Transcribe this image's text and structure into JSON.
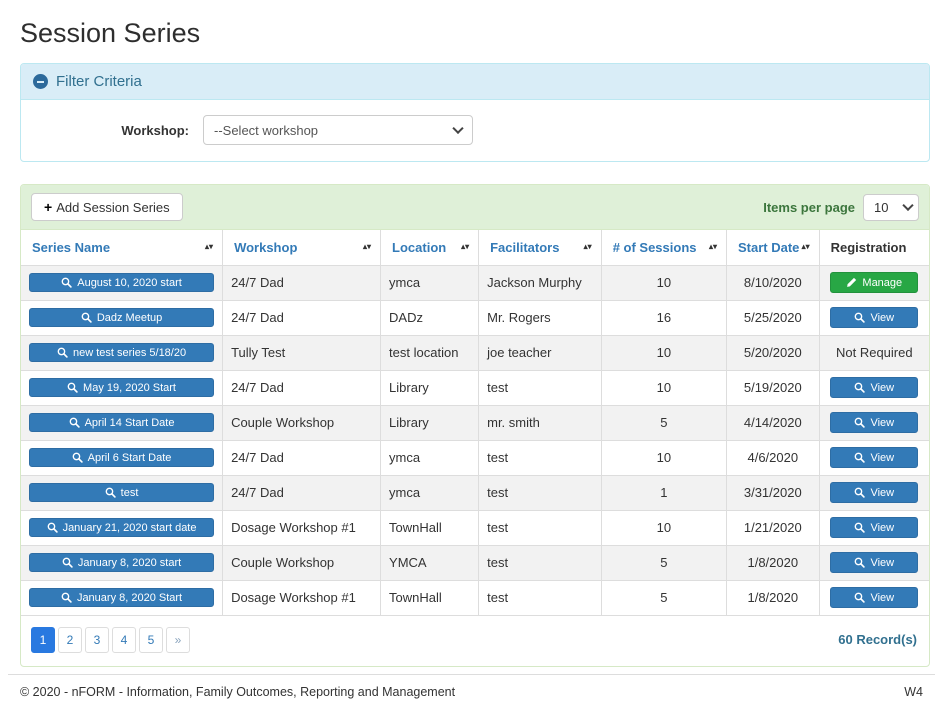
{
  "page": {
    "title": "Session Series"
  },
  "filter": {
    "header": "Filter Criteria",
    "workshop_label": "Workshop:",
    "workshop_selected": "--Select workshop"
  },
  "toolbar": {
    "add_button_plus": "+",
    "add_button": "Add Session Series",
    "items_per_page_label": "Items per page",
    "items_per_page_value": "10"
  },
  "table": {
    "columns": [
      {
        "label": "Series Name",
        "sortable": true
      },
      {
        "label": "Workshop",
        "sortable": true
      },
      {
        "label": "Location",
        "sortable": true
      },
      {
        "label": "Facilitators",
        "sortable": true
      },
      {
        "label": "# of Sessions",
        "sortable": true
      },
      {
        "label": "Start Date",
        "sortable": true
      },
      {
        "label": "Registration",
        "sortable": false
      }
    ],
    "rows": [
      {
        "series": "August 10, 2020 start",
        "workshop": "24/7 Dad",
        "location": "ymca",
        "facilitators": "Jackson Murphy",
        "sessions": "10",
        "start_date": "8/10/2020",
        "registration": "Manage",
        "registration_type": "manage"
      },
      {
        "series": "Dadz Meetup",
        "workshop": "24/7 Dad",
        "location": "DADz",
        "facilitators": "Mr. Rogers",
        "sessions": "16",
        "start_date": "5/25/2020",
        "registration": "View",
        "registration_type": "view"
      },
      {
        "series": "new test series 5/18/20",
        "workshop": "Tully Test",
        "location": "test location",
        "facilitators": "joe teacher",
        "sessions": "10",
        "start_date": "5/20/2020",
        "registration": "Not Required",
        "registration_type": "text"
      },
      {
        "series": "May 19, 2020 Start",
        "workshop": "24/7 Dad",
        "location": "Library",
        "facilitators": "test",
        "sessions": "10",
        "start_date": "5/19/2020",
        "registration": "View",
        "registration_type": "view"
      },
      {
        "series": "April 14 Start Date",
        "workshop": "Couple Workshop",
        "location": "Library",
        "facilitators": "mr. smith",
        "sessions": "5",
        "start_date": "4/14/2020",
        "registration": "View",
        "registration_type": "view"
      },
      {
        "series": "April 6 Start Date",
        "workshop": "24/7 Dad",
        "location": "ymca",
        "facilitators": "test",
        "sessions": "10",
        "start_date": "4/6/2020",
        "registration": "View",
        "registration_type": "view"
      },
      {
        "series": "test",
        "workshop": "24/7 Dad",
        "location": "ymca",
        "facilitators": "test",
        "sessions": "1",
        "start_date": "3/31/2020",
        "registration": "View",
        "registration_type": "view"
      },
      {
        "series": "January 21, 2020 start date",
        "workshop": "Dosage Workshop #1",
        "location": "TownHall",
        "facilitators": "test",
        "sessions": "10",
        "start_date": "1/21/2020",
        "registration": "View",
        "registration_type": "view"
      },
      {
        "series": "January 8, 2020 start",
        "workshop": "Couple Workshop",
        "location": "YMCA",
        "facilitators": "test",
        "sessions": "5",
        "start_date": "1/8/2020",
        "registration": "View",
        "registration_type": "view"
      },
      {
        "series": "January 8, 2020 Start",
        "workshop": "Dosage Workshop #1",
        "location": "TownHall",
        "facilitators": "test",
        "sessions": "5",
        "start_date": "1/8/2020",
        "registration": "View",
        "registration_type": "view"
      }
    ]
  },
  "pagination": {
    "pages": [
      "1",
      "2",
      "3",
      "4",
      "5"
    ],
    "next_label": "»",
    "active_page": "1",
    "records_label": "60 Record(s)"
  },
  "footer": {
    "copyright": "© 2020 - nFORM - Information, Family Outcomes, Reporting and Management",
    "version": "W4"
  },
  "colors": {
    "primary_blue": "#337ab7",
    "success_green": "#28a745",
    "filter_header_bg": "#d9edf7",
    "filter_header_text": "#31708f",
    "toolbar_bg": "#dff0d8",
    "panel_border_green": "#d6e9c6",
    "active_page_blue": "#2979e0",
    "row_stripe": "#f2f2f2"
  }
}
